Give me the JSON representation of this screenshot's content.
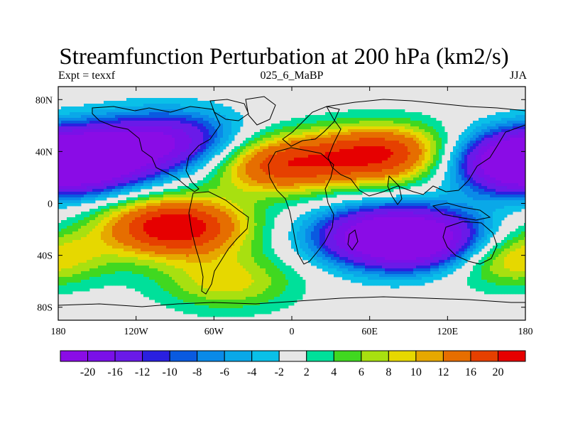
{
  "header": {
    "title": "Streamfunction Perturbation at 200 hPa (km2/s)",
    "left": "Expt = texxf",
    "center": "025_6_MaBP",
    "right": "JJA"
  },
  "chart_data": {
    "type": "heatmap",
    "title": "Streamfunction Perturbation at 200 hPa (km2/s)",
    "xlim": [
      -180,
      180
    ],
    "ylim": [
      -90,
      90
    ],
    "x_ticks": [
      {
        "value": -180,
        "label": "180"
      },
      {
        "value": -120,
        "label": "120W"
      },
      {
        "value": -60,
        "label": "60W"
      },
      {
        "value": 0,
        "label": "0"
      },
      {
        "value": 60,
        "label": "60E"
      },
      {
        "value": 120,
        "label": "120E"
      },
      {
        "value": 180,
        "label": "180"
      }
    ],
    "y_ticks": [
      {
        "value": 80,
        "label": "80N"
      },
      {
        "value": 40,
        "label": "40N"
      },
      {
        "value": 0,
        "label": "0"
      },
      {
        "value": -40,
        "label": "40S"
      },
      {
        "value": -80,
        "label": "80S"
      }
    ],
    "colorbar": {
      "colors": [
        "#8a0ce6",
        "#7a10e8",
        "#6a1ae8",
        "#2a20e0",
        "#0a5ae0",
        "#0a8ae8",
        "#0aa8e8",
        "#0ac0e8",
        "#e6e6e6",
        "#00e09a",
        "#40d820",
        "#a8e010",
        "#e6d800",
        "#e6a800",
        "#e66e00",
        "#e64000",
        "#e60000"
      ],
      "labels": [
        "-20",
        "-16",
        "-12",
        "-10",
        "-8",
        "-6",
        "-4",
        "-2",
        "2",
        "4",
        "6",
        "8",
        "10",
        "12",
        "16",
        "20"
      ]
    },
    "fields": [
      {
        "sign": "negative",
        "centers": [
          {
            "lon": -160,
            "lat": 35,
            "peak": -22
          },
          {
            "lon": -95,
            "lat": 48,
            "peak": -18
          },
          {
            "lon": 175,
            "lat": 30,
            "peak": -20
          },
          {
            "lon": 70,
            "lat": -25,
            "peak": -22
          },
          {
            "lon": 110,
            "lat": -30,
            "peak": -20
          }
        ]
      },
      {
        "sign": "positive",
        "centers": [
          {
            "lon": -90,
            "lat": -18,
            "peak": 24
          },
          {
            "lon": 70,
            "lat": 38,
            "peak": 20
          },
          {
            "lon": -10,
            "lat": 30,
            "peak": 18
          },
          {
            "lon": 160,
            "lat": -40,
            "peak": 14
          },
          {
            "lon": -50,
            "lat": -60,
            "peak": 9
          }
        ]
      }
    ]
  }
}
